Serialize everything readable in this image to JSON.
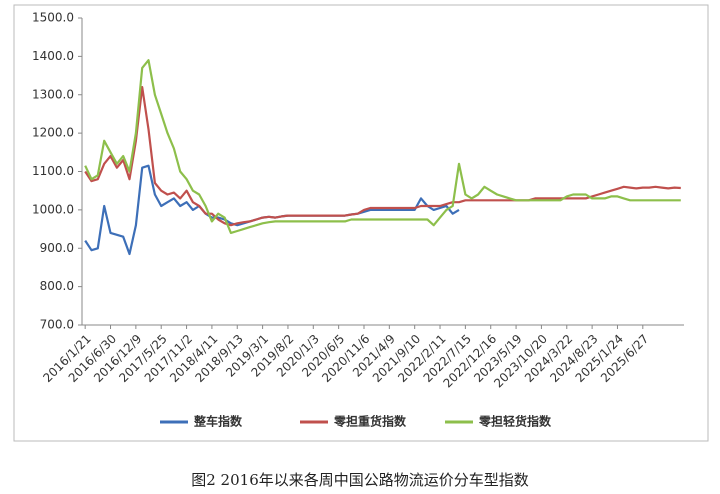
{
  "chart_data": {
    "type": "line",
    "caption": "图2 2016年以来各周中国公路物流运价分车型指数",
    "categories": [
      "2016/1/21",
      null,
      null,
      null,
      "2016/6/30",
      null,
      null,
      null,
      "2016/12/9",
      null,
      null,
      null,
      "2017/5/25",
      null,
      null,
      null,
      "2017/11/2",
      null,
      null,
      null,
      "2018/4/11",
      null,
      null,
      null,
      "2018/9/13",
      null,
      null,
      null,
      "2019/3/1",
      null,
      null,
      null,
      "2019/8/2",
      null,
      null,
      null,
      "2020/1/3",
      null,
      null,
      null,
      "2020/6/5",
      null,
      null,
      null,
      "2020/11/6",
      null,
      null,
      null,
      "2021/4/9",
      null,
      null,
      null,
      "2021/9/10",
      null,
      null,
      null,
      "2022/2/11",
      null,
      null,
      null,
      "2022/7/15",
      null,
      null,
      null,
      "2022/12/16",
      null,
      null,
      null,
      "2023/5/19",
      null,
      null,
      null,
      "2023/10/20",
      null,
      null,
      null,
      "2024/3/22",
      null,
      null,
      null,
      "2024/8/23",
      null,
      null,
      null,
      "2025/1/24",
      null,
      null,
      null,
      "2025/6/27",
      null,
      null,
      null,
      null,
      null,
      null
    ],
    "series": [
      {
        "name": "整车指数",
        "color": "#3d6fb8",
        "values": [
          920,
          895,
          900,
          1010,
          940,
          935,
          930,
          885,
          960,
          1110,
          1115,
          1040,
          1010,
          1020,
          1030,
          1010,
          1020,
          1000,
          1010,
          990,
          980,
          980,
          975,
          965,
          960,
          965,
          970,
          975,
          980,
          982,
          980,
          983,
          985,
          985,
          985,
          985,
          985,
          985,
          985,
          985,
          985,
          985,
          988,
          990,
          995,
          1000,
          1000,
          1000,
          1000,
          1000,
          1000,
          1000,
          1000,
          1030,
          1010,
          1000,
          1005,
          1010,
          990,
          1000,
          null,
          null,
          null,
          null,
          null,
          null,
          null,
          null,
          null,
          null,
          null,
          null,
          null,
          null,
          null,
          null,
          null,
          null,
          null,
          null,
          null,
          null,
          null,
          null,
          null,
          null,
          null,
          null,
          null,
          null,
          null,
          null,
          null,
          null,
          null
        ]
      },
      {
        "name": "零担重货指数",
        "color": "#c0504d",
        "values": [
          1100,
          1075,
          1080,
          1120,
          1140,
          1110,
          1130,
          1080,
          1180,
          1320,
          1210,
          1070,
          1050,
          1040,
          1045,
          1030,
          1050,
          1020,
          1010,
          990,
          990,
          975,
          965,
          960,
          965,
          968,
          970,
          975,
          980,
          982,
          980,
          983,
          985,
          985,
          985,
          985,
          985,
          985,
          985,
          985,
          985,
          985,
          988,
          990,
          1000,
          1005,
          1005,
          1005,
          1005,
          1005,
          1005,
          1005,
          1005,
          1010,
          1010,
          1010,
          1010,
          1015,
          1020,
          1020,
          1025,
          1025,
          1025,
          1025,
          1025,
          1025,
          1025,
          1025,
          1025,
          1025,
          1025,
          1030,
          1030,
          1030,
          1030,
          1030,
          1030,
          1030,
          1030,
          1030,
          1035,
          1040,
          1045,
          1050,
          1055,
          1060,
          1058,
          1056,
          1058,
          1058,
          1060,
          1058,
          1056,
          1058,
          1057
        ]
      },
      {
        "name": "零担轻货指数",
        "color": "#8dbf4b",
        "values": [
          1115,
          1080,
          1090,
          1180,
          1150,
          1120,
          1140,
          1100,
          1200,
          1370,
          1390,
          1300,
          1250,
          1200,
          1160,
          1100,
          1080,
          1050,
          1040,
          1010,
          970,
          990,
          980,
          940,
          945,
          950,
          955,
          960,
          965,
          968,
          970,
          970,
          970,
          970,
          970,
          970,
          970,
          970,
          970,
          970,
          970,
          970,
          975,
          975,
          975,
          975,
          975,
          975,
          975,
          975,
          975,
          975,
          975,
          975,
          975,
          960,
          980,
          1000,
          1010,
          1120,
          1040,
          1030,
          1040,
          1060,
          1050,
          1040,
          1035,
          1030,
          1025,
          1025,
          1025,
          1025,
          1025,
          1025,
          1025,
          1025,
          1035,
          1040,
          1040,
          1040,
          1030,
          1030,
          1030,
          1035,
          1035,
          1030,
          1025,
          1025,
          1025,
          1025,
          1025,
          1025,
          1025,
          1025,
          1025
        ]
      }
    ],
    "ylim": [
      700,
      1500
    ],
    "yticks": [
      {
        "value": 700,
        "label": "700.0"
      },
      {
        "value": 800,
        "label": "800.0"
      },
      {
        "value": 900,
        "label": "900.0"
      },
      {
        "value": 1000,
        "label": "1000.0"
      },
      {
        "value": 1100,
        "label": "1100.0"
      },
      {
        "value": 1200,
        "label": "1200.0"
      },
      {
        "value": 1300,
        "label": "1300.0"
      },
      {
        "value": 1400,
        "label": "1400.0"
      },
      {
        "value": 1500,
        "label": "1500.0"
      }
    ],
    "legend": "bottom"
  }
}
